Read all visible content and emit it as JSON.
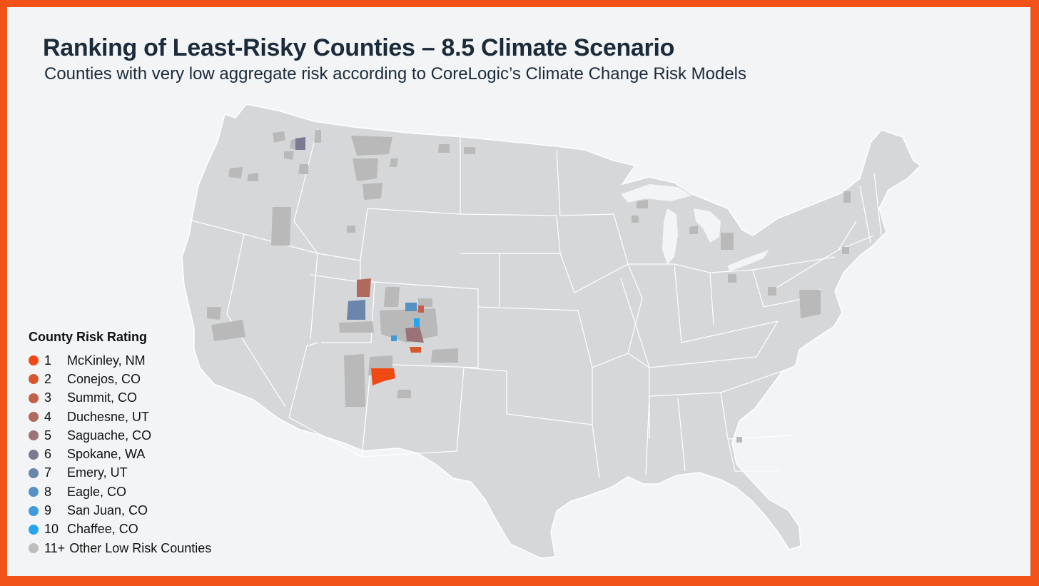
{
  "header": {
    "title": "Ranking of Least-Risky Counties – 8.5 Climate Scenario",
    "subtitle": "Counties with very low aggregate risk according to CoreLogic’s Climate Change Risk Models"
  },
  "legend": {
    "title": "County Risk Rating",
    "items": [
      {
        "rank": "1",
        "county": "McKinley, NM",
        "color": "#f04a14"
      },
      {
        "rank": "2",
        "county": "Conejos, CO",
        "color": "#d9572d"
      },
      {
        "rank": "3",
        "county": "Summit, CO",
        "color": "#c2614a"
      },
      {
        "rank": "4",
        "county": "Duchesne, UT",
        "color": "#b06a5c"
      },
      {
        "rank": "5",
        "county": "Saguache, CO",
        "color": "#9a7278"
      },
      {
        "rank": "6",
        "county": "Spokane, WA",
        "color": "#7c7a92"
      },
      {
        "rank": "7",
        "county": "Emery, UT",
        "color": "#6a86aa"
      },
      {
        "rank": "8",
        "county": "Eagle, CO",
        "color": "#5690c4"
      },
      {
        "rank": "9",
        "county": "San Juan, CO",
        "color": "#3f9ada"
      },
      {
        "rank": "10",
        "county": "Chaffee, CO",
        "color": "#26a5ee"
      },
      {
        "rank": "11+",
        "county": "Other Low Risk Counties",
        "color": "#bdbdbd"
      }
    ]
  },
  "map": {
    "land_color": "#d5d7d9",
    "border_color": "#ffffff",
    "other_county_color": "#b9b9b9"
  }
}
